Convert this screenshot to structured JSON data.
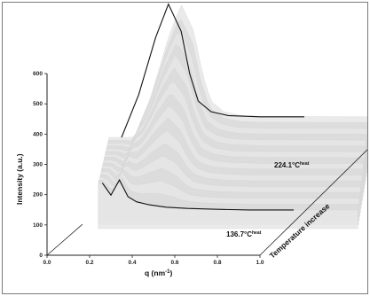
{
  "chart_data": {
    "type": "area",
    "title": "",
    "xlabel": "q (nm",
    "xlabel_sup": "-1",
    "xlabel_end": ")",
    "ylabel": "Intensity (a.u.)",
    "zlabel": "Temperature increase",
    "xlim": [
      0,
      1.0
    ],
    "ylim": [
      0,
      600
    ],
    "x_ticks": [
      "0.0",
      "0.2",
      "0.4",
      "0.6",
      "0.8",
      "1.0"
    ],
    "y_ticks": [
      "0",
      "100",
      "200",
      "300",
      "400",
      "500",
      "600"
    ],
    "series": [
      {
        "name": "136.7°C",
        "name_text": "136.7°C",
        "name_sup": "heat",
        "x": [
          0.26,
          0.3,
          0.34,
          0.38,
          0.42,
          0.48,
          0.56,
          0.66,
          0.8,
          0.95
        ],
        "y": [
          180,
          140,
          190,
          135,
          118,
          108,
          100,
          96,
          93,
          91
        ]
      },
      {
        "name": "224.1°C",
        "name_text": "224.1°C",
        "name_sup": "heat",
        "x": [
          0.3,
          0.38,
          0.46,
          0.52,
          0.58,
          0.62,
          0.66,
          0.72,
          0.8,
          0.95
        ],
        "y": [
          120,
          260,
          450,
          560,
          470,
          330,
          240,
          205,
          192,
          188
        ]
      }
    ],
    "grid": false
  }
}
